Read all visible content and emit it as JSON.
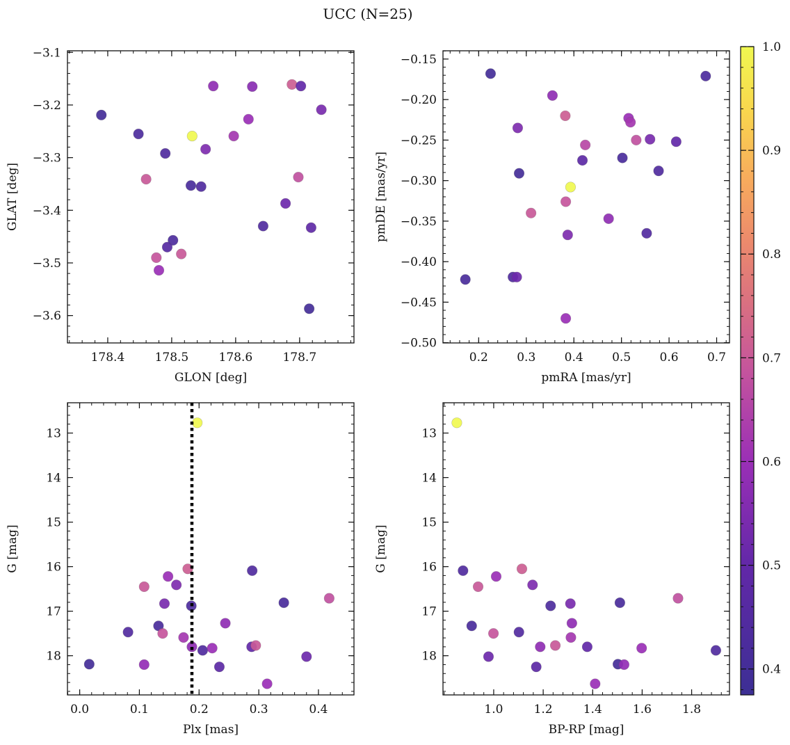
{
  "figure": {
    "title": "UCC (N=25)"
  },
  "colorbar": {
    "ticks": [
      0.4,
      0.5,
      0.6,
      0.7,
      0.8,
      0.9,
      1.0
    ],
    "tick_labels": [
      "0.4",
      "0.5",
      "0.6",
      "0.7",
      "0.8",
      "0.9",
      "1.0"
    ],
    "min": 0.375,
    "max": 1.0,
    "colormap": "plasma-truncated"
  },
  "chart_data": [
    {
      "type": "scatter",
      "name": "glon-glat",
      "xlabel": "GLON [deg]",
      "ylabel": "GLAT [deg]",
      "xlim": [
        178.337,
        178.785
      ],
      "ylim": [
        -3.652,
        -3.097
      ],
      "y_inverted": false,
      "xticks": [
        178.4,
        178.5,
        178.6,
        178.7
      ],
      "xtick_labels": [
        "178.4",
        "178.5",
        "178.6",
        "178.7"
      ],
      "yticks": [
        -3.6,
        -3.5,
        -3.4,
        -3.3,
        -3.2,
        -3.1
      ],
      "ytick_labels": [
        "−3.6",
        "−3.5",
        "−3.4",
        "−3.3",
        "−3.2",
        "−3.1"
      ],
      "points": [
        {
          "x": 178.39,
          "y": -3.219,
          "c": 0.4
        },
        {
          "x": 178.448,
          "y": -3.255,
          "c": 0.43
        },
        {
          "x": 178.46,
          "y": -3.341,
          "c": 0.7
        },
        {
          "x": 178.49,
          "y": -3.292,
          "c": 0.44
        },
        {
          "x": 178.532,
          "y": -3.259,
          "c": 1.0
        },
        {
          "x": 178.53,
          "y": -3.353,
          "c": 0.42
        },
        {
          "x": 178.546,
          "y": -3.355,
          "c": 0.44
        },
        {
          "x": 178.553,
          "y": -3.284,
          "c": 0.55
        },
        {
          "x": 178.565,
          "y": -3.164,
          "c": 0.58
        },
        {
          "x": 178.597,
          "y": -3.259,
          "c": 0.62
        },
        {
          "x": 178.62,
          "y": -3.227,
          "c": 0.6
        },
        {
          "x": 178.626,
          "y": -3.165,
          "c": 0.57
        },
        {
          "x": 178.643,
          "y": -3.43,
          "c": 0.44
        },
        {
          "x": 178.678,
          "y": -3.387,
          "c": 0.52
        },
        {
          "x": 178.688,
          "y": -3.161,
          "c": 0.71
        },
        {
          "x": 178.698,
          "y": -3.337,
          "c": 0.68
        },
        {
          "x": 178.702,
          "y": -3.164,
          "c": 0.5
        },
        {
          "x": 178.715,
          "y": -3.587,
          "c": 0.4
        },
        {
          "x": 178.718,
          "y": -3.433,
          "c": 0.49
        },
        {
          "x": 178.734,
          "y": -3.209,
          "c": 0.54
        },
        {
          "x": 178.502,
          "y": -3.457,
          "c": 0.43
        },
        {
          "x": 178.493,
          "y": -3.47,
          "c": 0.46
        },
        {
          "x": 178.476,
          "y": -3.49,
          "c": 0.69
        },
        {
          "x": 178.48,
          "y": -3.514,
          "c": 0.6
        },
        {
          "x": 178.515,
          "y": -3.483,
          "c": 0.7
        }
      ]
    },
    {
      "type": "scatter",
      "name": "pmra-pmde",
      "xlabel": "pmRA [mas/yr]",
      "ylabel": "pmDE [mas/yr]",
      "xlim": [
        0.125,
        0.727
      ],
      "ylim": [
        -0.5003,
        -0.1398
      ],
      "y_inverted": false,
      "xticks": [
        0.2,
        0.3,
        0.4,
        0.5,
        0.6,
        0.7
      ],
      "xtick_labels": [
        "0.2",
        "0.3",
        "0.4",
        "0.5",
        "0.6",
        "0.7"
      ],
      "yticks": [
        -0.5,
        -0.45,
        -0.4,
        -0.35,
        -0.3,
        -0.25,
        -0.2,
        -0.15
      ],
      "ytick_labels": [
        "−0.50",
        "−0.45",
        "−0.40",
        "−0.35",
        "−0.30",
        "−0.25",
        "−0.20",
        "−0.15"
      ],
      "points": [
        {
          "x": 0.225,
          "y": -0.168,
          "c": 0.4
        },
        {
          "x": 0.677,
          "y": -0.171,
          "c": 0.43
        },
        {
          "x": 0.355,
          "y": -0.195,
          "c": 0.58
        },
        {
          "x": 0.382,
          "y": -0.22,
          "c": 0.71
        },
        {
          "x": 0.515,
          "y": -0.223,
          "c": 0.6
        },
        {
          "x": 0.519,
          "y": -0.228,
          "c": 0.62
        },
        {
          "x": 0.282,
          "y": -0.235,
          "c": 0.55
        },
        {
          "x": 0.424,
          "y": -0.256,
          "c": 0.66
        },
        {
          "x": 0.531,
          "y": -0.25,
          "c": 0.68
        },
        {
          "x": 0.56,
          "y": -0.249,
          "c": 0.54
        },
        {
          "x": 0.615,
          "y": -0.252,
          "c": 0.5
        },
        {
          "x": 0.418,
          "y": -0.275,
          "c": 0.48
        },
        {
          "x": 0.502,
          "y": -0.272,
          "c": 0.42
        },
        {
          "x": 0.578,
          "y": -0.288,
          "c": 0.44
        },
        {
          "x": 0.285,
          "y": -0.291,
          "c": 0.4
        },
        {
          "x": 0.393,
          "y": -0.308,
          "c": 1.0
        },
        {
          "x": 0.383,
          "y": -0.326,
          "c": 0.69
        },
        {
          "x": 0.31,
          "y": -0.34,
          "c": 0.7
        },
        {
          "x": 0.473,
          "y": -0.347,
          "c": 0.58
        },
        {
          "x": 0.387,
          "y": -0.367,
          "c": 0.55
        },
        {
          "x": 0.553,
          "y": -0.365,
          "c": 0.45
        },
        {
          "x": 0.172,
          "y": -0.422,
          "c": 0.42
        },
        {
          "x": 0.272,
          "y": -0.419,
          "c": 0.44
        },
        {
          "x": 0.28,
          "y": -0.419,
          "c": 0.52
        },
        {
          "x": 0.383,
          "y": -0.47,
          "c": 0.6
        }
      ]
    },
    {
      "type": "scatter",
      "name": "plx-g",
      "xlabel": "Plx [mas]",
      "ylabel": "G [mag]",
      "xlim": [
        -0.0205,
        0.4595
      ],
      "ylim": [
        12.32,
        18.88
      ],
      "y_inverted": true,
      "vline": 0.188,
      "xticks": [
        0.0,
        0.1,
        0.2,
        0.3,
        0.4
      ],
      "xtick_labels": [
        "0.0",
        "0.1",
        "0.2",
        "0.3",
        "0.4"
      ],
      "yticks": [
        13,
        14,
        15,
        16,
        17,
        18
      ],
      "ytick_labels": [
        "13",
        "14",
        "15",
        "16",
        "17",
        "18"
      ],
      "points": [
        {
          "x": 0.197,
          "y": 12.77,
          "c": 1.0
        },
        {
          "x": 0.181,
          "y": 16.05,
          "c": 0.71
        },
        {
          "x": 0.289,
          "y": 16.09,
          "c": 0.44
        },
        {
          "x": 0.108,
          "y": 16.45,
          "c": 0.7
        },
        {
          "x": 0.148,
          "y": 16.22,
          "c": 0.6
        },
        {
          "x": 0.162,
          "y": 16.41,
          "c": 0.55
        },
        {
          "x": 0.142,
          "y": 16.83,
          "c": 0.54
        },
        {
          "x": 0.187,
          "y": 16.88,
          "c": 0.43
        },
        {
          "x": 0.342,
          "y": 16.81,
          "c": 0.42
        },
        {
          "x": 0.418,
          "y": 16.71,
          "c": 0.68
        },
        {
          "x": 0.081,
          "y": 17.47,
          "c": 0.45
        },
        {
          "x": 0.132,
          "y": 17.33,
          "c": 0.42
        },
        {
          "x": 0.139,
          "y": 17.5,
          "c": 0.69
        },
        {
          "x": 0.174,
          "y": 17.59,
          "c": 0.62
        },
        {
          "x": 0.244,
          "y": 17.27,
          "c": 0.58
        },
        {
          "x": 0.188,
          "y": 17.8,
          "c": 0.58
        },
        {
          "x": 0.206,
          "y": 17.88,
          "c": 0.44
        },
        {
          "x": 0.222,
          "y": 17.83,
          "c": 0.6
        },
        {
          "x": 0.288,
          "y": 17.8,
          "c": 0.5
        },
        {
          "x": 0.295,
          "y": 17.77,
          "c": 0.7
        },
        {
          "x": 0.38,
          "y": 18.02,
          "c": 0.52
        },
        {
          "x": 0.016,
          "y": 18.19,
          "c": 0.4
        },
        {
          "x": 0.108,
          "y": 18.2,
          "c": 0.59
        },
        {
          "x": 0.234,
          "y": 18.25,
          "c": 0.48
        },
        {
          "x": 0.314,
          "y": 18.63,
          "c": 0.6
        }
      ]
    },
    {
      "type": "scatter",
      "name": "bprp-g",
      "xlabel": "BP-RP [mag]",
      "ylabel": "G [mag]",
      "xlim": [
        0.795,
        1.953
      ],
      "ylim": [
        12.32,
        18.88
      ],
      "y_inverted": true,
      "xticks": [
        1.0,
        1.2,
        1.4,
        1.6,
        1.8
      ],
      "xtick_labels": [
        "1.0",
        "1.2",
        "1.4",
        "1.6",
        "1.8"
      ],
      "yticks": [
        13,
        14,
        15,
        16,
        17,
        18
      ],
      "ytick_labels": [
        "13",
        "14",
        "15",
        "16",
        "17",
        "18"
      ],
      "points": [
        {
          "x": 0.851,
          "y": 12.77,
          "c": 1.0
        },
        {
          "x": 0.876,
          "y": 16.09,
          "c": 0.44
        },
        {
          "x": 0.937,
          "y": 16.45,
          "c": 0.7
        },
        {
          "x": 1.01,
          "y": 16.22,
          "c": 0.6
        },
        {
          "x": 1.114,
          "y": 16.05,
          "c": 0.71
        },
        {
          "x": 1.157,
          "y": 16.41,
          "c": 0.55
        },
        {
          "x": 1.23,
          "y": 16.88,
          "c": 0.43
        },
        {
          "x": 1.31,
          "y": 16.83,
          "c": 0.54
        },
        {
          "x": 1.51,
          "y": 16.81,
          "c": 0.42
        },
        {
          "x": 1.745,
          "y": 16.71,
          "c": 0.68
        },
        {
          "x": 0.911,
          "y": 17.33,
          "c": 0.42
        },
        {
          "x": 0.999,
          "y": 17.5,
          "c": 0.69
        },
        {
          "x": 1.102,
          "y": 17.47,
          "c": 0.45
        },
        {
          "x": 1.316,
          "y": 17.27,
          "c": 0.58
        },
        {
          "x": 1.312,
          "y": 17.59,
          "c": 0.62
        },
        {
          "x": 1.188,
          "y": 17.8,
          "c": 0.58
        },
        {
          "x": 1.249,
          "y": 17.77,
          "c": 0.7
        },
        {
          "x": 1.378,
          "y": 17.8,
          "c": 0.5
        },
        {
          "x": 1.598,
          "y": 17.83,
          "c": 0.6
        },
        {
          "x": 1.898,
          "y": 17.88,
          "c": 0.44
        },
        {
          "x": 0.979,
          "y": 18.02,
          "c": 0.52
        },
        {
          "x": 1.172,
          "y": 18.25,
          "c": 0.48
        },
        {
          "x": 1.502,
          "y": 18.19,
          "c": 0.4
        },
        {
          "x": 1.527,
          "y": 18.2,
          "c": 0.59
        },
        {
          "x": 1.41,
          "y": 18.63,
          "c": 0.6
        }
      ]
    }
  ]
}
